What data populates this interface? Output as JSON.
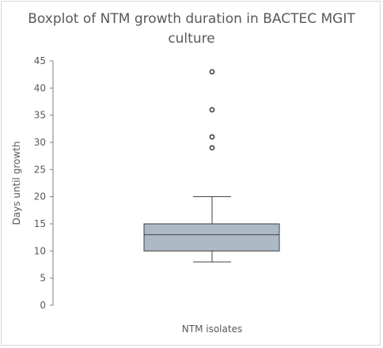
{
  "chart_data": {
    "type": "boxplot",
    "title_lines": [
      "Boxplot of NTM growth duration in BACTEC MGIT",
      "culture"
    ],
    "xlabel": "NTM isolates",
    "ylabel": "Days until growth",
    "ylim": [
      0,
      45
    ],
    "y_ticks": [
      0,
      5,
      10,
      15,
      20,
      25,
      30,
      35,
      40,
      45
    ],
    "grid": false,
    "box": {
      "whisker_low": 8,
      "q1": 10,
      "median": 13,
      "q3": 15,
      "whisker_high": 20,
      "outliers": [
        29,
        31,
        36,
        43
      ]
    },
    "colors": {
      "box_fill": "#adb9c4",
      "stroke": "#404040",
      "axis": "#7f7f7f",
      "text": "#595959"
    }
  }
}
